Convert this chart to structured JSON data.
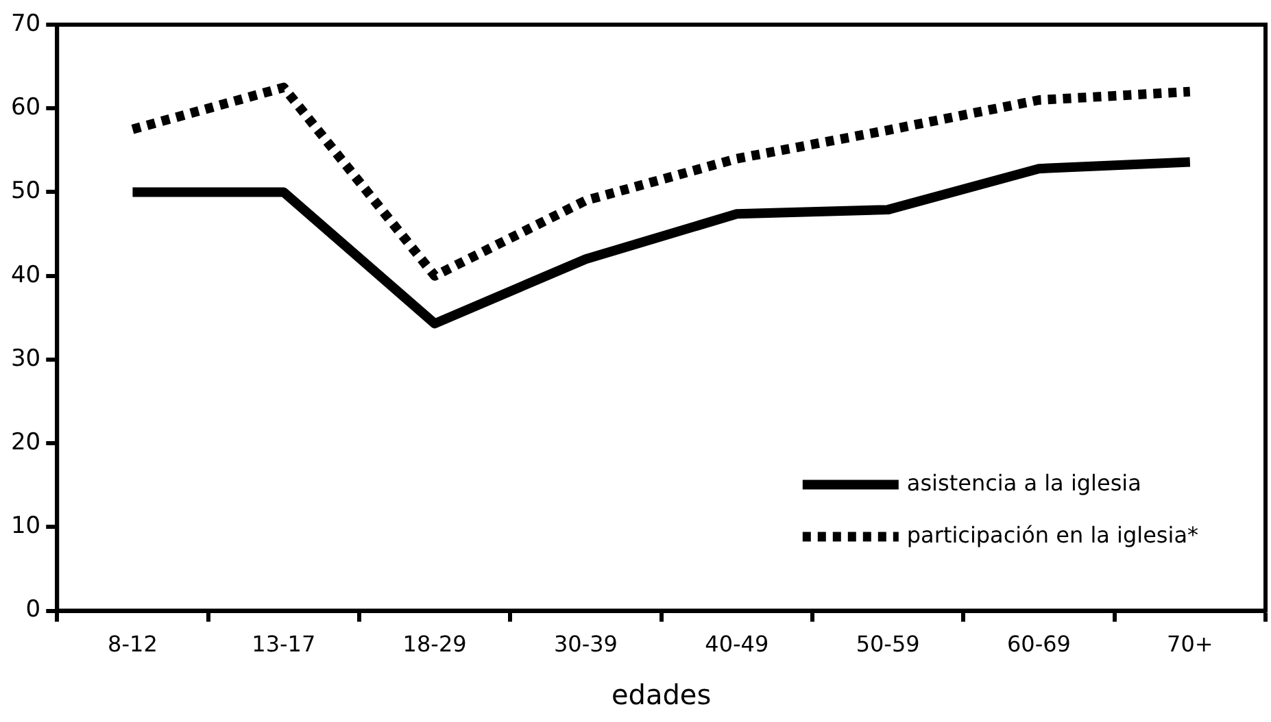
{
  "chart_data": {
    "type": "line",
    "xlabel": "edades",
    "categories": [
      "8-12",
      "13-17",
      "18-29",
      "30-39",
      "40-49",
      "50-59",
      "60-69",
      "70+"
    ],
    "series": [
      {
        "name": "asistencia a la iglesia",
        "color": "#000000",
        "line_style": "solid",
        "values": [
          50,
          50,
          34.3,
          42,
          47.4,
          47.9,
          52.8,
          53.6
        ]
      },
      {
        "name": "participación en la iglesia*",
        "color": "#000000",
        "line_style": "dotted",
        "values": [
          57.5,
          62.5,
          40,
          49,
          54,
          57.4,
          61,
          62
        ]
      }
    ],
    "ylim": [
      0,
      70
    ],
    "yticks": [
      0,
      10,
      20,
      30,
      40,
      50,
      60,
      70
    ],
    "grid": false,
    "legend": "bottom right",
    "marker": "none"
  }
}
